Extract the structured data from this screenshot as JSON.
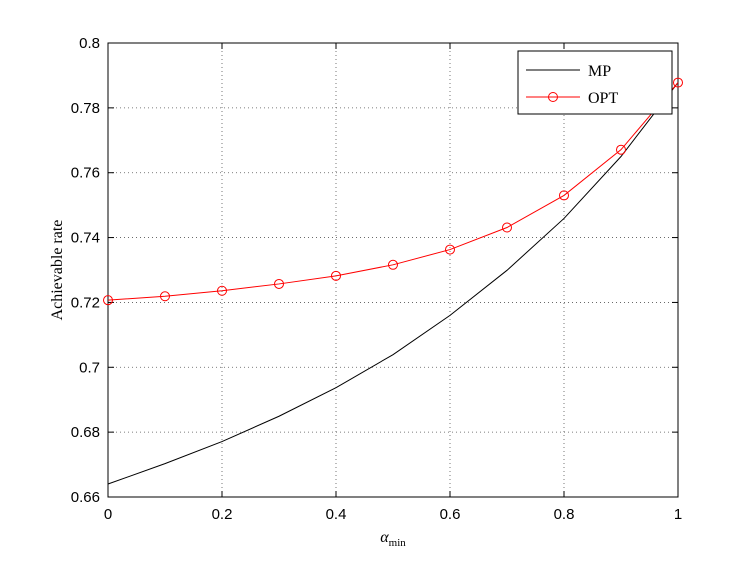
{
  "chart_data": {
    "type": "line",
    "title": "",
    "xlabel": "α",
    "xlabel_subscript": "min",
    "ylabel": "Achievable rate",
    "xlim": [
      0,
      1
    ],
    "ylim": [
      0.66,
      0.8
    ],
    "x_ticks": [
      0,
      0.2,
      0.4,
      0.6,
      0.8,
      1
    ],
    "x_tick_labels": [
      "0",
      "0.2",
      "0.4",
      "0.6",
      "0.8",
      "1"
    ],
    "y_ticks": [
      0.66,
      0.68,
      0.7,
      0.72,
      0.74,
      0.76,
      0.78,
      0.8
    ],
    "y_tick_labels": [
      "0.66",
      "0.68",
      "0.7",
      "0.72",
      "0.74",
      "0.76",
      "0.78",
      "0.8"
    ],
    "grid": true,
    "legend_position": "top-right",
    "x": [
      0,
      0.1,
      0.2,
      0.3,
      0.4,
      0.5,
      0.6,
      0.7,
      0.8,
      0.9,
      1.0
    ],
    "series": [
      {
        "name": "MP",
        "color": "#000000",
        "marker": "none",
        "values": [
          0.664,
          0.6703,
          0.6771,
          0.6849,
          0.6937,
          0.7039,
          0.716,
          0.7299,
          0.7459,
          0.765,
          0.7878
        ]
      },
      {
        "name": "OPT",
        "color": "#ff0000",
        "marker": "circle",
        "values": [
          0.7207,
          0.7219,
          0.7236,
          0.7257,
          0.7282,
          0.7316,
          0.7363,
          0.7431,
          0.753,
          0.7671,
          0.7878
        ]
      }
    ]
  }
}
